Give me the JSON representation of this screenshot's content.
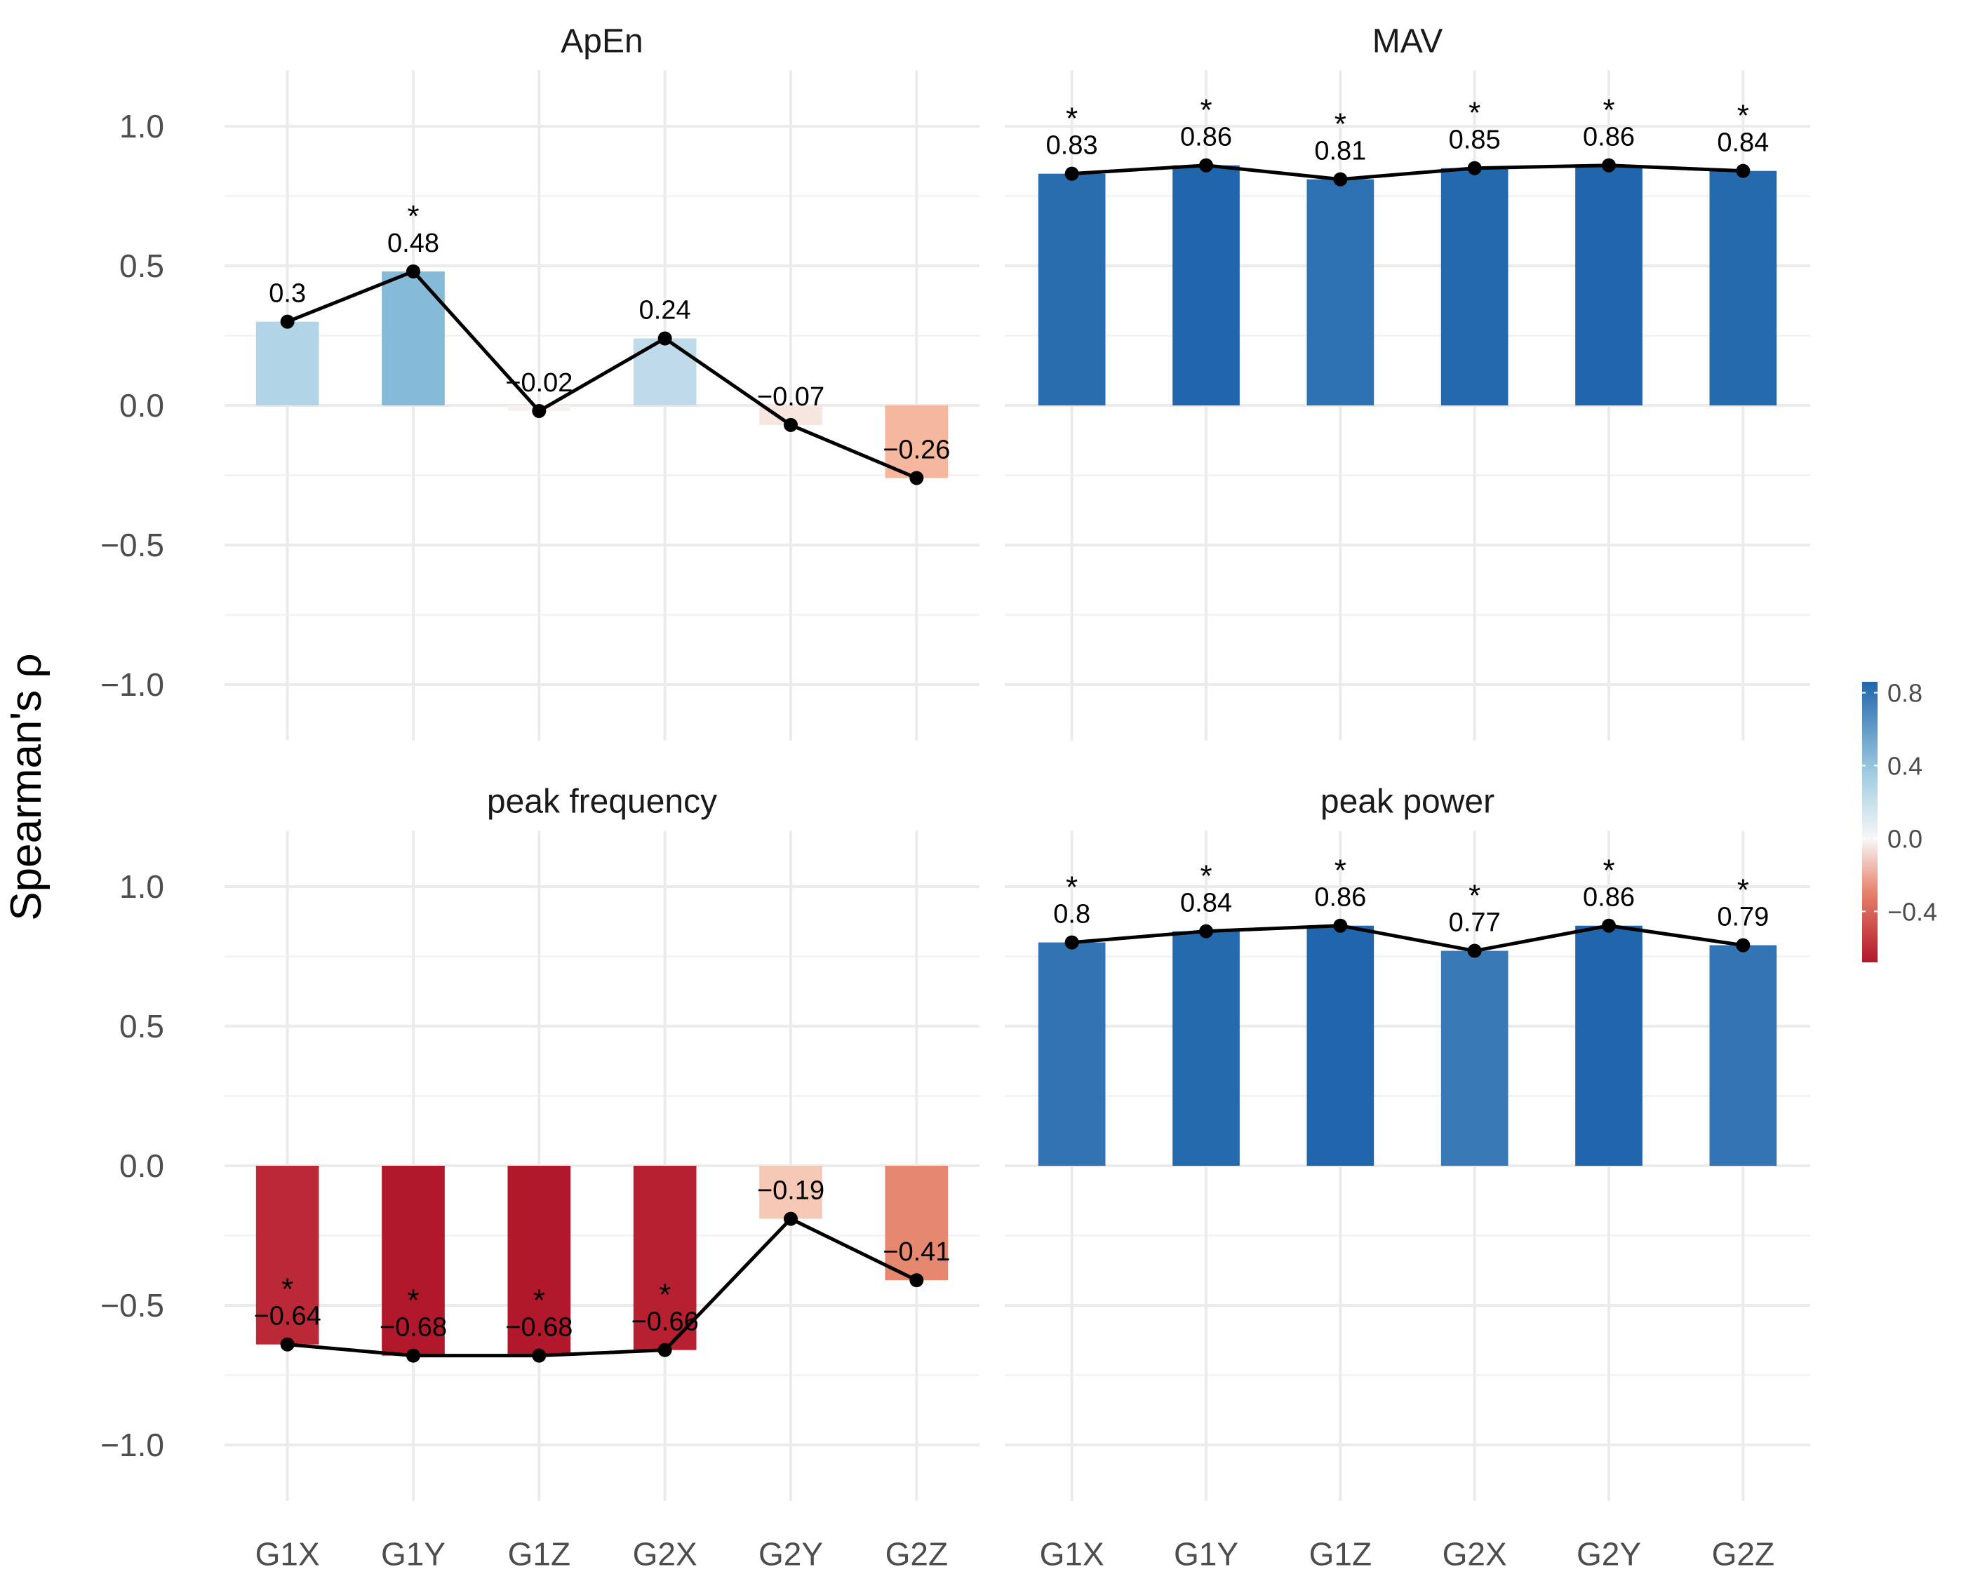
{
  "chart_data": {
    "type": "bar",
    "ylabel": "Spearman's ρ",
    "categories": [
      "G1X",
      "G1Y",
      "G1Z",
      "G2X",
      "G2Y",
      "G2Z"
    ],
    "ylim": [
      -1.2,
      1.2
    ],
    "yticks": [
      1.0,
      0.5,
      0.0,
      -0.5,
      -1.0
    ],
    "ytick_labels": [
      "1.0",
      "0.5",
      "0.0",
      "−0.5",
      "−1.0"
    ],
    "fill_scale": {
      "ticks": [
        0.8,
        0.4,
        0.0,
        -0.4
      ],
      "tick_labels": [
        "0.8",
        "0.4",
        "0.0",
        "−0.4"
      ],
      "range": [
        -0.68,
        0.86
      ],
      "low_color": "#b2182b",
      "mid_color": "#f7f7f7",
      "high_color": "#2166ac"
    },
    "facets": [
      {
        "title": "ApEn",
        "values": [
          0.3,
          0.48,
          -0.02,
          0.24,
          -0.07,
          -0.26
        ],
        "labels": [
          "0.3",
          "0.48",
          "−0.02",
          "0.24",
          "−0.07",
          "−0.26"
        ],
        "significant": [
          false,
          true,
          false,
          false,
          false,
          false
        ]
      },
      {
        "title": "MAV",
        "values": [
          0.83,
          0.86,
          0.81,
          0.85,
          0.86,
          0.84
        ],
        "labels": [
          "0.83",
          "0.86",
          "0.81",
          "0.85",
          "0.86",
          "0.84"
        ],
        "significant": [
          true,
          true,
          true,
          true,
          true,
          true
        ]
      },
      {
        "title": "peak frequency",
        "values": [
          -0.64,
          -0.68,
          -0.68,
          -0.66,
          -0.19,
          -0.41
        ],
        "labels": [
          "−0.64",
          "−0.68",
          "−0.68",
          "−0.66",
          "−0.19",
          "−0.41"
        ],
        "significant": [
          true,
          true,
          true,
          true,
          false,
          false
        ]
      },
      {
        "title": "peak power",
        "values": [
          0.8,
          0.84,
          0.86,
          0.77,
          0.86,
          0.79
        ],
        "labels": [
          "0.8",
          "0.84",
          "0.86",
          "0.77",
          "0.86",
          "0.79"
        ],
        "significant": [
          true,
          true,
          true,
          true,
          true,
          true
        ]
      }
    ],
    "significance_marker": "*",
    "legend_position": "right",
    "grid": true
  }
}
